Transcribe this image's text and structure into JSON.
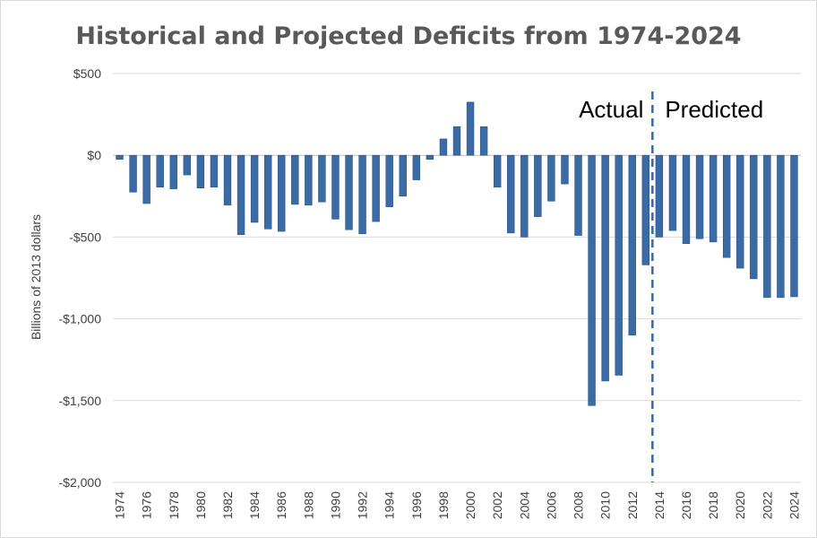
{
  "chart_data": {
    "type": "bar",
    "title": "Historical and Projected Deficits from 1974-2024",
    "xlabel": "",
    "ylabel": "Billions of 2013 dollars",
    "ylim": [
      -2000,
      500
    ],
    "yticks": [
      500,
      0,
      -500,
      -1000,
      -1500,
      -2000
    ],
    "ytick_labels": [
      "$500",
      "$0",
      "-$500",
      "-$1,000",
      "-$1,500",
      "-$2,000"
    ],
    "categories": [
      "1974",
      "1975",
      "1976",
      "1977",
      "1978",
      "1979",
      "1980",
      "1981",
      "1982",
      "1983",
      "1984",
      "1985",
      "1986",
      "1987",
      "1988",
      "1989",
      "1990",
      "1991",
      "1992",
      "1993",
      "1994",
      "1995",
      "1996",
      "1997",
      "1998",
      "1999",
      "2000",
      "2001",
      "2002",
      "2003",
      "2004",
      "2005",
      "2006",
      "2007",
      "2008",
      "2009",
      "2010",
      "2011",
      "2012",
      "2013",
      "2014",
      "2015",
      "2016",
      "2017",
      "2018",
      "2019",
      "2020",
      "2021",
      "2022",
      "2023",
      "2024"
    ],
    "xtick_labels": [
      "1974",
      "1976",
      "1978",
      "1980",
      "1982",
      "1984",
      "1986",
      "1988",
      "1990",
      "1992",
      "1994",
      "1996",
      "1998",
      "2000",
      "2002",
      "2004",
      "2006",
      "2008",
      "2010",
      "2012",
      "2014",
      "2016",
      "2018",
      "2020",
      "2022",
      "2024"
    ],
    "values": [
      -25,
      -225,
      -295,
      -195,
      -205,
      -120,
      -200,
      -195,
      -305,
      -485,
      -410,
      -450,
      -465,
      -300,
      -305,
      -285,
      -390,
      -455,
      -480,
      -405,
      -315,
      -250,
      -150,
      -25,
      100,
      175,
      325,
      175,
      -195,
      -475,
      -500,
      -375,
      -280,
      -175,
      -490,
      -1530,
      -1380,
      -1345,
      -1100,
      -670,
      -500,
      -460,
      -540,
      -510,
      -530,
      -625,
      -690,
      -755,
      -870,
      -870,
      -865
    ],
    "bar_color": "#3b6ba5",
    "grid": true,
    "divider": {
      "between": [
        "2013",
        "2014"
      ],
      "style": "dashed",
      "color": "#2e6ab8"
    },
    "annotations": {
      "left": "Actual",
      "right": "Predicted"
    }
  }
}
